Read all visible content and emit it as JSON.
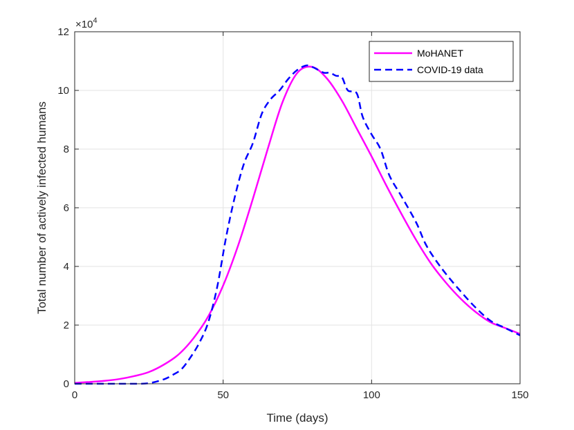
{
  "chart_data": {
    "type": "line",
    "title": "",
    "xlabel": "Time (days)",
    "ylabel": "Total number of actively infected humans",
    "xlim": [
      0,
      150
    ],
    "ylim": [
      0,
      120000
    ],
    "xticks": [
      0,
      50,
      100,
      150
    ],
    "yticks": [
      0,
      20000,
      40000,
      60000,
      80000,
      100000,
      120000
    ],
    "xtick_labels": [
      "0",
      "50",
      "100",
      "150"
    ],
    "ytick_labels": [
      "0",
      "2",
      "4",
      "6",
      "8",
      "10",
      "12"
    ],
    "y_multiplier": {
      "base": "×10",
      "exponent": "4"
    },
    "grid": true,
    "legend_position": "top-right",
    "series": [
      {
        "name": "MoHANET",
        "color": "#ff00ff",
        "style": "solid",
        "x": [
          0,
          5,
          10,
          15,
          20,
          25,
          30,
          35,
          40,
          45,
          50,
          55,
          60,
          65,
          70,
          75,
          80,
          85,
          90,
          95,
          100,
          105,
          110,
          115,
          120,
          125,
          130,
          135,
          140,
          145,
          150
        ],
        "y": [
          300,
          600,
          1000,
          1600,
          2600,
          4000,
          6500,
          10000,
          15500,
          23000,
          33500,
          47000,
          63000,
          80000,
          96000,
          106000,
          108000,
          104000,
          96500,
          87000,
          77500,
          67500,
          58000,
          49000,
          41000,
          34500,
          29000,
          24500,
          21000,
          19000,
          17000
        ]
      },
      {
        "name": "COVID-19 data",
        "color": "#0000ff",
        "style": "dashed",
        "x": [
          0,
          10,
          20,
          25,
          30,
          33,
          36,
          39,
          42,
          45,
          48,
          51,
          54,
          57,
          60,
          63,
          66,
          69,
          72,
          75,
          78,
          80,
          82,
          84,
          86,
          88,
          90,
          92,
          95,
          97,
          100,
          103,
          106,
          110,
          115,
          118,
          121,
          125,
          130,
          135,
          140,
          145,
          150
        ],
        "y": [
          0,
          0,
          0,
          200,
          1500,
          3000,
          5000,
          9000,
          14000,
          21000,
          33000,
          50000,
          64000,
          75000,
          82000,
          92000,
          97000,
          100000,
          104000,
          107000,
          108500,
          108000,
          107000,
          106000,
          106000,
          105000,
          104500,
          100000,
          99000,
          91000,
          85000,
          80000,
          71000,
          64000,
          55000,
          48000,
          43000,
          37500,
          31500,
          26000,
          21500,
          19000,
          16500
        ]
      }
    ]
  }
}
